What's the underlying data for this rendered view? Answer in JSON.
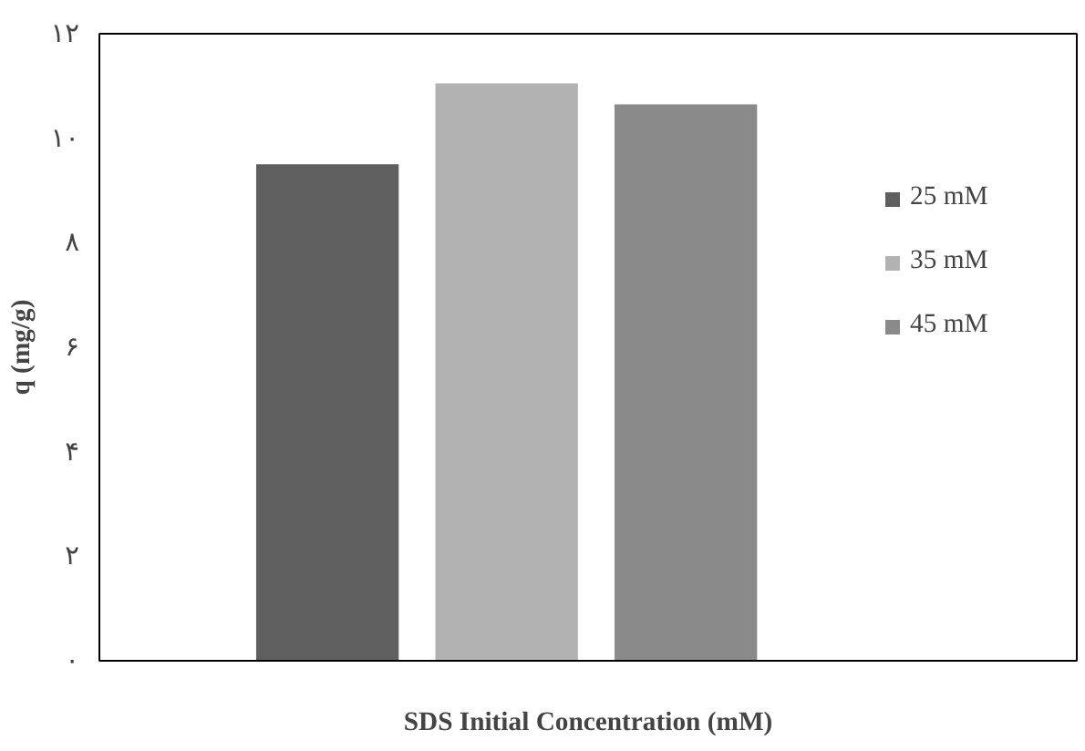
{
  "chart_data": {
    "type": "bar",
    "xlabel": "SDS Initial Concentration (mM)",
    "ylabel": "q (mg/g)",
    "categories": [
      null
    ],
    "series": [
      {
        "name": "25 mM",
        "color": "#5f5f5f",
        "values": [
          9.5
        ]
      },
      {
        "name": "35 mM",
        "color": "#b2b2b2",
        "values": [
          11.05
        ]
      },
      {
        "name": "45 mM",
        "color": "#8a8a8a",
        "values": [
          10.65
        ]
      }
    ],
    "ylim": [
      0,
      12
    ],
    "yticks": [
      {
        "value": 0,
        "label": "۰"
      },
      {
        "value": 2,
        "label": "۲"
      },
      {
        "value": 4,
        "label": "۴"
      },
      {
        "value": 6,
        "label": "۶"
      },
      {
        "value": 8,
        "label": "۸"
      },
      {
        "value": 10,
        "label": "۱۰"
      },
      {
        "value": 12,
        "label": "۱۲"
      }
    ],
    "grid": false,
    "legend": "right",
    "tick_labels": "y"
  }
}
